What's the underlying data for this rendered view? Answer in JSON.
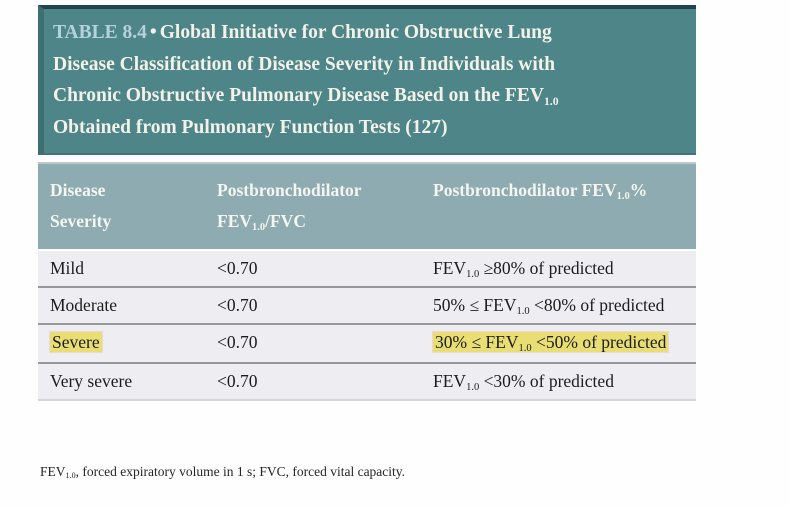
{
  "figure": {
    "title": {
      "label": "TABLE 8.4",
      "separator": "•",
      "lines": [
        "Global Initiative for Chronic Obstructive Lung",
        "Disease Classification of Disease Severity in Individuals with",
        "Chronic Obstructive Pulmonary Disease Based on the FEV_{1.0}",
        "Obtained from Pulmonary Function Tests (127)"
      ]
    },
    "columns": [
      "Disease Severity",
      "Postbronchodilator FEV_{1.0}/FVC",
      "Postbronchodilator FEV_{1.0}%"
    ],
    "rows": [
      {
        "severity": "Mild",
        "fev_fvc": "<0.70",
        "fev_pct": "FEV_{1.0} ≥80% of predicted",
        "highlighted": false
      },
      {
        "severity": "Moderate",
        "fev_fvc": "<0.70",
        "fev_pct": "50% ≤ FEV_{1.0} <80% of predicted",
        "highlighted": false
      },
      {
        "severity": "Severe",
        "fev_fvc": "<0.70",
        "fev_pct": "30% ≤ FEV_{1.0} <50% of predicted",
        "highlighted": true
      },
      {
        "severity": "Very severe",
        "fev_fvc": "<0.70",
        "fev_pct": "FEV_{1.0} <30% of predicted",
        "highlighted": false
      }
    ],
    "footnote": "FEV_{1.0}, forced expiratory volume in 1 s; FVC, forced vital capacity.",
    "colors": {
      "title_bg": "#4e8589",
      "title_label_text": "#b5d2dc",
      "title_text": "#f2f2e8",
      "header_bg": "#8dabb1",
      "row_bg": "#eeeef2",
      "highlight": "#e9de74",
      "body_text": "#1c1c1c"
    }
  }
}
